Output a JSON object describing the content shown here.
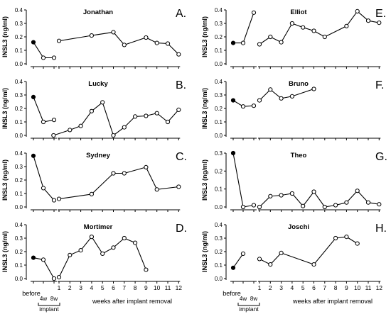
{
  "chart_data": [
    {
      "type": "line",
      "title": "Jonathan",
      "panel_letter": "A.",
      "ylabel": "INSL3 (ng/ml)",
      "ylim": [
        0,
        0.4
      ],
      "yticks": [
        "0.0",
        "0.1",
        "0.2",
        "0.3",
        "0.4"
      ],
      "points": [
        {
          "t": "before",
          "y": 0.16,
          "filled": true
        },
        {
          "t": "4w",
          "y": 0.045
        },
        {
          "t": "8w",
          "y": 0.045
        },
        {
          "t": 1,
          "y": 0.17
        },
        {
          "t": 4,
          "y": 0.21
        },
        {
          "t": 6,
          "y": 0.235
        },
        {
          "t": 7,
          "y": 0.14
        },
        {
          "t": 9,
          "y": 0.195
        },
        {
          "t": 10,
          "y": 0.155
        },
        {
          "t": 11,
          "y": 0.15
        },
        {
          "t": 12,
          "y": 0.07
        }
      ]
    },
    {
      "type": "line",
      "title": "Lucky",
      "panel_letter": "B.",
      "ylabel": "INSL3 (ng/ml)",
      "ylim": [
        0,
        0.4
      ],
      "yticks": [
        "0.0",
        "0.1",
        "0.2",
        "0.3",
        "0.4"
      ],
      "points": [
        {
          "t": "before",
          "y": 0.285,
          "filled": true
        },
        {
          "t": "4w",
          "y": 0.1
        },
        {
          "t": "8w",
          "y": 0.115
        },
        {
          "t": 0.5,
          "y": 0.0
        },
        {
          "t": 2,
          "y": 0.04
        },
        {
          "t": 3,
          "y": 0.07
        },
        {
          "t": 4,
          "y": 0.18
        },
        {
          "t": 5,
          "y": 0.245
        },
        {
          "t": 6,
          "y": 0.0
        },
        {
          "t": 7,
          "y": 0.06
        },
        {
          "t": 8,
          "y": 0.14
        },
        {
          "t": 9,
          "y": 0.145
        },
        {
          "t": 10,
          "y": 0.165
        },
        {
          "t": 11,
          "y": 0.1
        },
        {
          "t": 12,
          "y": 0.19
        }
      ]
    },
    {
      "type": "line",
      "title": "Sydney",
      "panel_letter": "C.",
      "ylabel": "INSL3 (ng/ml)",
      "ylim": [
        0,
        0.4
      ],
      "yticks": [
        "0.0",
        "0.1",
        "0.2",
        "0.3",
        "0.4"
      ],
      "points": [
        {
          "t": "before",
          "y": 0.38,
          "filled": true
        },
        {
          "t": "4w",
          "y": 0.14
        },
        {
          "t": "8w",
          "y": 0.05
        },
        {
          "t": 1,
          "y": 0.06
        },
        {
          "t": 4,
          "y": 0.095
        },
        {
          "t": 6,
          "y": 0.25
        },
        {
          "t": 7,
          "y": 0.25
        },
        {
          "t": 9,
          "y": 0.295
        },
        {
          "t": 10,
          "y": 0.13
        },
        {
          "t": 12,
          "y": 0.15
        }
      ]
    },
    {
      "type": "line",
      "title": "Mortimer",
      "panel_letter": "D.",
      "ylabel": "INSL3 (ng/ml)",
      "ylim": [
        0,
        0.4
      ],
      "yticks": [
        "0.0",
        "0.1",
        "0.2",
        "0.3",
        "0.4"
      ],
      "points": [
        {
          "t": "before",
          "y": 0.155,
          "filled": true
        },
        {
          "t": "4w",
          "y": 0.14
        },
        {
          "t": "8w",
          "y": 0.0
        },
        {
          "t": 1,
          "y": 0.01
        },
        {
          "t": 2,
          "y": 0.175
        },
        {
          "t": 3,
          "y": 0.21
        },
        {
          "t": 4,
          "y": 0.31
        },
        {
          "t": 5,
          "y": 0.185
        },
        {
          "t": 6,
          "y": 0.23
        },
        {
          "t": 7,
          "y": 0.3
        },
        {
          "t": 8,
          "y": 0.265
        },
        {
          "t": 9,
          "y": 0.065
        }
      ]
    },
    {
      "type": "line",
      "title": "Elliot",
      "panel_letter": "E.",
      "ylabel": "INSL3 (ng/ml)",
      "ylim": [
        0,
        0.4
      ],
      "yticks": [
        "0.0",
        "0.1",
        "0.2",
        "0.3",
        "0.4"
      ],
      "points": [
        {
          "t": "before",
          "y": 0.155,
          "filled": true
        },
        {
          "t": "4w",
          "y": 0.155
        },
        {
          "t": "8w",
          "y": 0.38
        },
        {
          "t": 1,
          "y": 0.145
        },
        {
          "t": 2,
          "y": 0.2
        },
        {
          "t": 3,
          "y": 0.16
        },
        {
          "t": 4,
          "y": 0.3
        },
        {
          "t": 5,
          "y": 0.27
        },
        {
          "t": 6,
          "y": 0.245
        },
        {
          "t": 7,
          "y": 0.2
        },
        {
          "t": 9,
          "y": 0.28
        },
        {
          "t": 10,
          "y": 0.39
        },
        {
          "t": 11,
          "y": 0.32
        },
        {
          "t": 12,
          "y": 0.305
        }
      ]
    },
    {
      "type": "line",
      "title": "Bruno",
      "panel_letter": "F.",
      "ylabel": "INSL3 (ng/ml)",
      "ylim": [
        0,
        0.4
      ],
      "yticks": [
        "0.0",
        "0.1",
        "0.2",
        "0.3",
        "0.4"
      ],
      "points": [
        {
          "t": "before",
          "y": 0.26,
          "filled": true
        },
        {
          "t": "4w",
          "y": 0.215
        },
        {
          "t": "8w",
          "y": 0.22
        },
        {
          "t": 1,
          "y": 0.26
        },
        {
          "t": 2,
          "y": 0.34
        },
        {
          "t": 3,
          "y": 0.275
        },
        {
          "t": 4,
          "y": 0.29
        },
        {
          "t": 6,
          "y": 0.345
        }
      ]
    },
    {
      "type": "line",
      "title": "Theo",
      "panel_letter": "G.",
      "ylabel": "INSL3 (ng/ml)",
      "ylim": [
        0,
        0.3
      ],
      "yticks": [
        "0.0",
        "0.1",
        "0.2",
        "0.3"
      ],
      "points": [
        {
          "t": "before",
          "y": 0.3,
          "filled": true
        },
        {
          "t": "4w",
          "y": 0.0
        },
        {
          "t": "8w",
          "y": 0.01
        },
        {
          "t": 1,
          "y": 0.0
        },
        {
          "t": 2,
          "y": 0.06
        },
        {
          "t": 3,
          "y": 0.065
        },
        {
          "t": 4,
          "y": 0.075
        },
        {
          "t": 5,
          "y": 0.005
        },
        {
          "t": 6,
          "y": 0.085
        },
        {
          "t": 7,
          "y": 0.0
        },
        {
          "t": 8,
          "y": 0.01
        },
        {
          "t": 9,
          "y": 0.025
        },
        {
          "t": 10,
          "y": 0.09
        },
        {
          "t": 11,
          "y": 0.025
        },
        {
          "t": 12,
          "y": 0.015
        }
      ]
    },
    {
      "type": "line",
      "title": "Joschi",
      "panel_letter": "H.",
      "ylabel": "INSL3 (ng/ml)",
      "ylim": [
        0,
        0.4
      ],
      "yticks": [
        "0.0",
        "0.1",
        "0.2",
        "0.3",
        "0.4"
      ],
      "points": [
        {
          "t": "before",
          "y": 0.08,
          "filled": true
        },
        {
          "t": "4w",
          "y": 0.185
        },
        {
          "t": 1,
          "y": 0.145
        },
        {
          "t": 2,
          "y": 0.105
        },
        {
          "t": 3,
          "y": 0.19
        },
        {
          "t": 6,
          "y": 0.105
        },
        {
          "t": 8,
          "y": 0.3
        },
        {
          "t": 9,
          "y": 0.31
        },
        {
          "t": 10,
          "y": 0.26
        }
      ]
    }
  ],
  "x_axis": {
    "before_label": "before",
    "implant_ticks": [
      "4w",
      "8w"
    ],
    "implant_label": "implant",
    "after_ticks": [
      "1",
      "2",
      "3",
      "4",
      "5",
      "6",
      "7",
      "8",
      "9",
      "10",
      "11",
      "12"
    ],
    "after_label": "weeks after implant removal"
  }
}
